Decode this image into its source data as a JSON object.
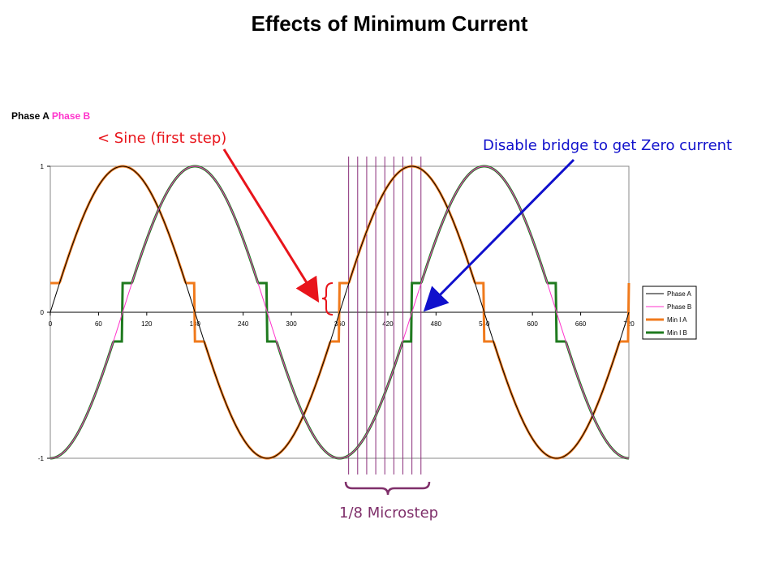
{
  "slide": {
    "title": "Effects of Minimum Current",
    "phase_heading": {
      "a": "Phase A",
      "b": "Phase B"
    }
  },
  "annotations": {
    "sine_first_step": "< Sine (first step)",
    "disable_bridge": "Disable bridge to get Zero current",
    "microstep": "1/8 Microstep"
  },
  "colors": {
    "phase_a": "#000000",
    "phase_b": "#ff33cc",
    "min_i_a": "#f07a1c",
    "min_i_b": "#1f7a1f",
    "sine_annotation": "#e8141b",
    "disable_annotation": "#1010cc",
    "microstep_annotation": "#7f2f6a",
    "microstep_lines": "#8a2d7a"
  },
  "chart_data": {
    "type": "line",
    "x_unit": "degrees",
    "xlim": [
      0,
      720
    ],
    "ylim": [
      -1,
      1
    ],
    "x_ticks": [
      "0",
      "60",
      "120",
      "180",
      "240",
      "300",
      "360",
      "420",
      "480",
      "540",
      "600",
      "660",
      "720"
    ],
    "y_ticks": [
      "-1",
      "0",
      "1"
    ],
    "grid": false,
    "legend_position": "right",
    "series": [
      {
        "name": "Phase A",
        "function": "sin(x)",
        "color": "#000000"
      },
      {
        "name": "Phase B",
        "function": "-cos(x)",
        "color": "#ff33cc"
      },
      {
        "name": "Min I A",
        "function": "sin(x) with minimum step 0.2 and 1/8 microstepping",
        "min_level": 0.2,
        "color": "#f07a1c"
      },
      {
        "name": "Min I B",
        "function": "-cos(x) with minimum step 0.2 and 1/8 microstepping",
        "min_level": 0.2,
        "color": "#1f7a1f"
      }
    ],
    "microstep_marker_x": [
      371.25,
      382.5,
      393.75,
      405,
      416.25,
      427.5,
      438.75,
      450,
      461.25
    ]
  }
}
